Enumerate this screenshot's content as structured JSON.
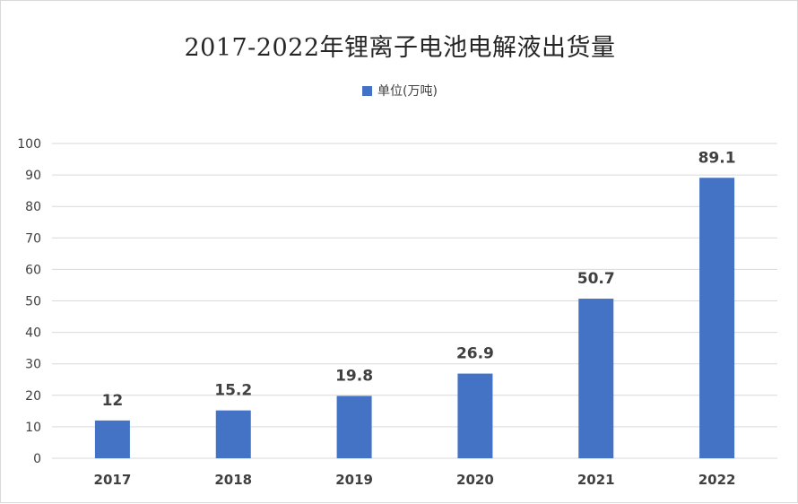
{
  "chart_data": {
    "type": "bar",
    "title": "2017-2022年锂离子电池电解液出货量",
    "legend_position": "top-center",
    "categories": [
      "2017",
      "2018",
      "2019",
      "2020",
      "2021",
      "2022"
    ],
    "series": [
      {
        "name": "单位(万吨)",
        "values": [
          12,
          15.2,
          19.8,
          26.9,
          50.7,
          89.1
        ],
        "color": "#4472c4"
      }
    ],
    "data_labels": [
      "12",
      "15.2",
      "19.8",
      "26.9",
      "50.7",
      "89.1"
    ],
    "ylim": [
      0,
      100
    ],
    "yticks": [
      "0",
      "10",
      "20",
      "30",
      "40",
      "50",
      "60",
      "70",
      "80",
      "90",
      "100"
    ],
    "grid": true,
    "gridline_color": "#d9d9d9"
  }
}
